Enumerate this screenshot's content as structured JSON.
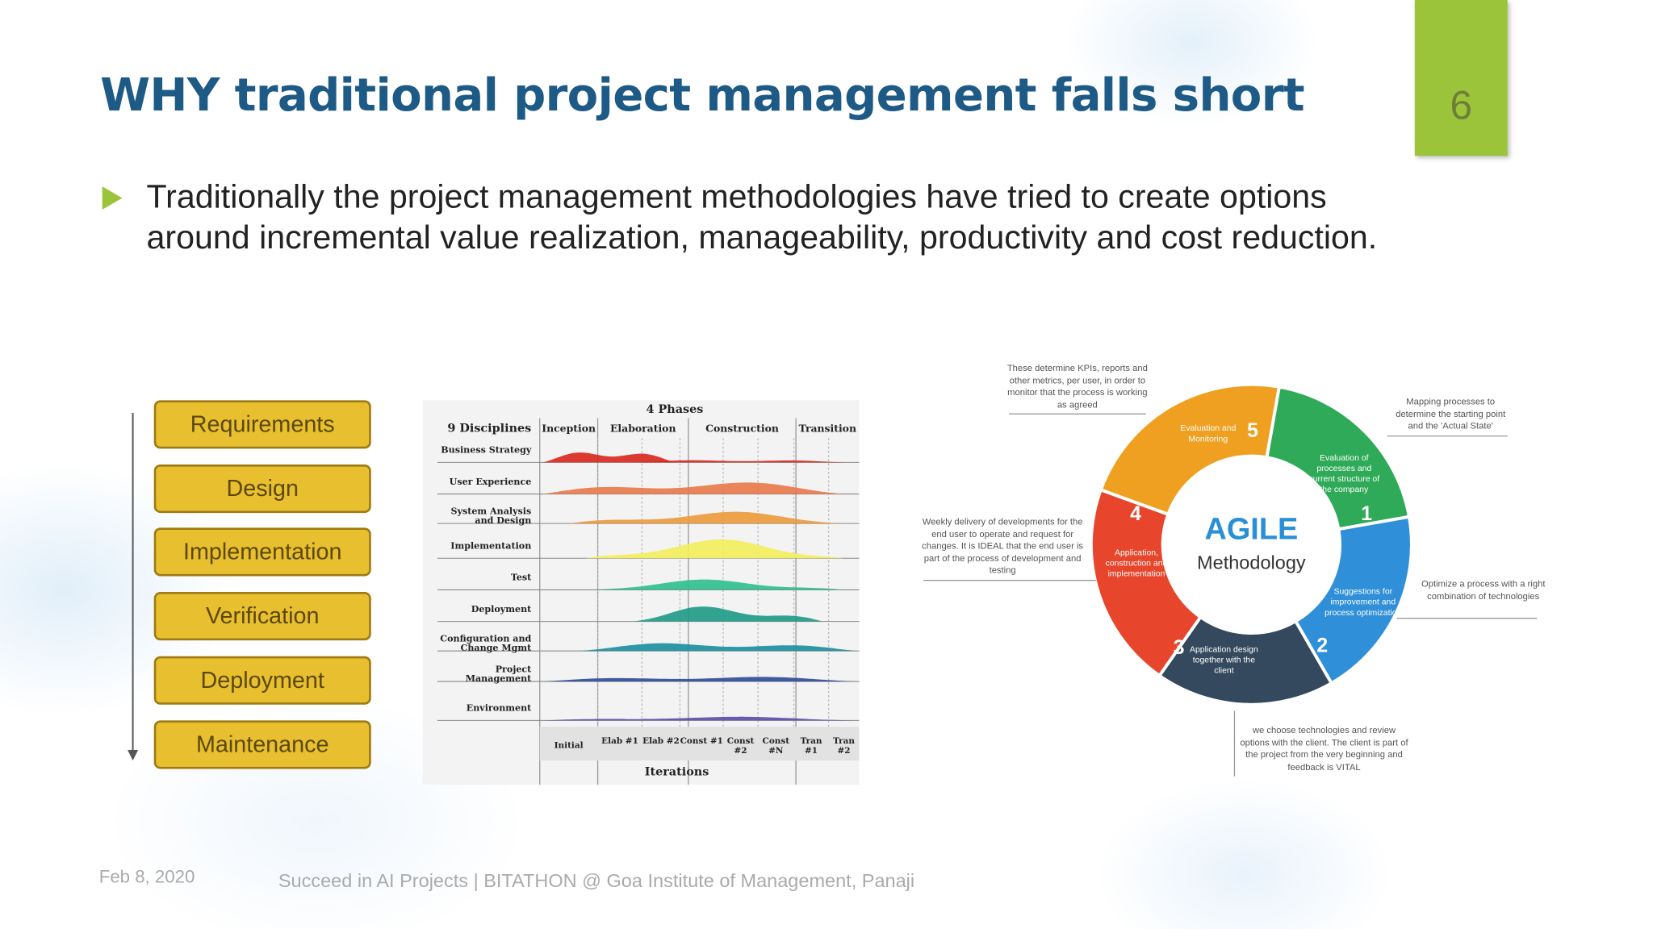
{
  "slide_number": "6",
  "title": "WHY traditional project management falls short",
  "bullet": "Traditionally the project management methodologies have tried to create options around incremental value realization, manageability, productivity and cost reduction.",
  "waterfall": {
    "steps": [
      "Requirements",
      "Design",
      "Implementation",
      "Verification",
      "Deployment",
      "Maintenance"
    ]
  },
  "rup": {
    "phases_title": "4 Phases",
    "disciplines_title": "9 Disciplines",
    "phases": [
      "Inception",
      "Elaboration",
      "Construction",
      "Transition"
    ],
    "disciplines": [
      "Business Strategy",
      "User Experience",
      "System Analysis and Design",
      "Implementation",
      "Test",
      "Deployment",
      "Configuration and Change Mgmt",
      "Project Management",
      "Environment"
    ],
    "iterations": [
      "Initial",
      "Elab #1",
      "Elab #2",
      "Const #1",
      "Const #2",
      "Const #N",
      "Tran #1",
      "Tran #2"
    ],
    "iterations_title": "Iterations"
  },
  "agile": {
    "title": "AGILE",
    "subtitle": "Methodology",
    "segments": [
      {
        "number": "1",
        "label": "Evaluation of processes and current structure of the company"
      },
      {
        "number": "2",
        "label": "Suggestions for improvement and process optimization"
      },
      {
        "number": "3",
        "label": "Application design together with the client"
      },
      {
        "number": "4",
        "label": "Application, construction and implementation"
      },
      {
        "number": "5",
        "label": "Evaluation and Monitoring"
      }
    ],
    "notes": [
      "These determine KPIs, reports and other metrics, per user, in order to monitor that the process is working as agreed",
      "Mapping processes to determine the starting point and the 'Actual State'",
      "Weekly delivery of developments for the end user to operate and request for changes. It is IDEAL that the end user is part of the process of development and testing",
      "Optimize a process with a right combination of technologies",
      "we choose technologies and review options with the client. The client is part of the project from the very beginning and feedback is VITAL"
    ]
  },
  "footer": {
    "date": "Feb 8, 2020",
    "text": "Succeed in AI Projects | BITATHON @ Goa Institute of Management, Panaji"
  }
}
